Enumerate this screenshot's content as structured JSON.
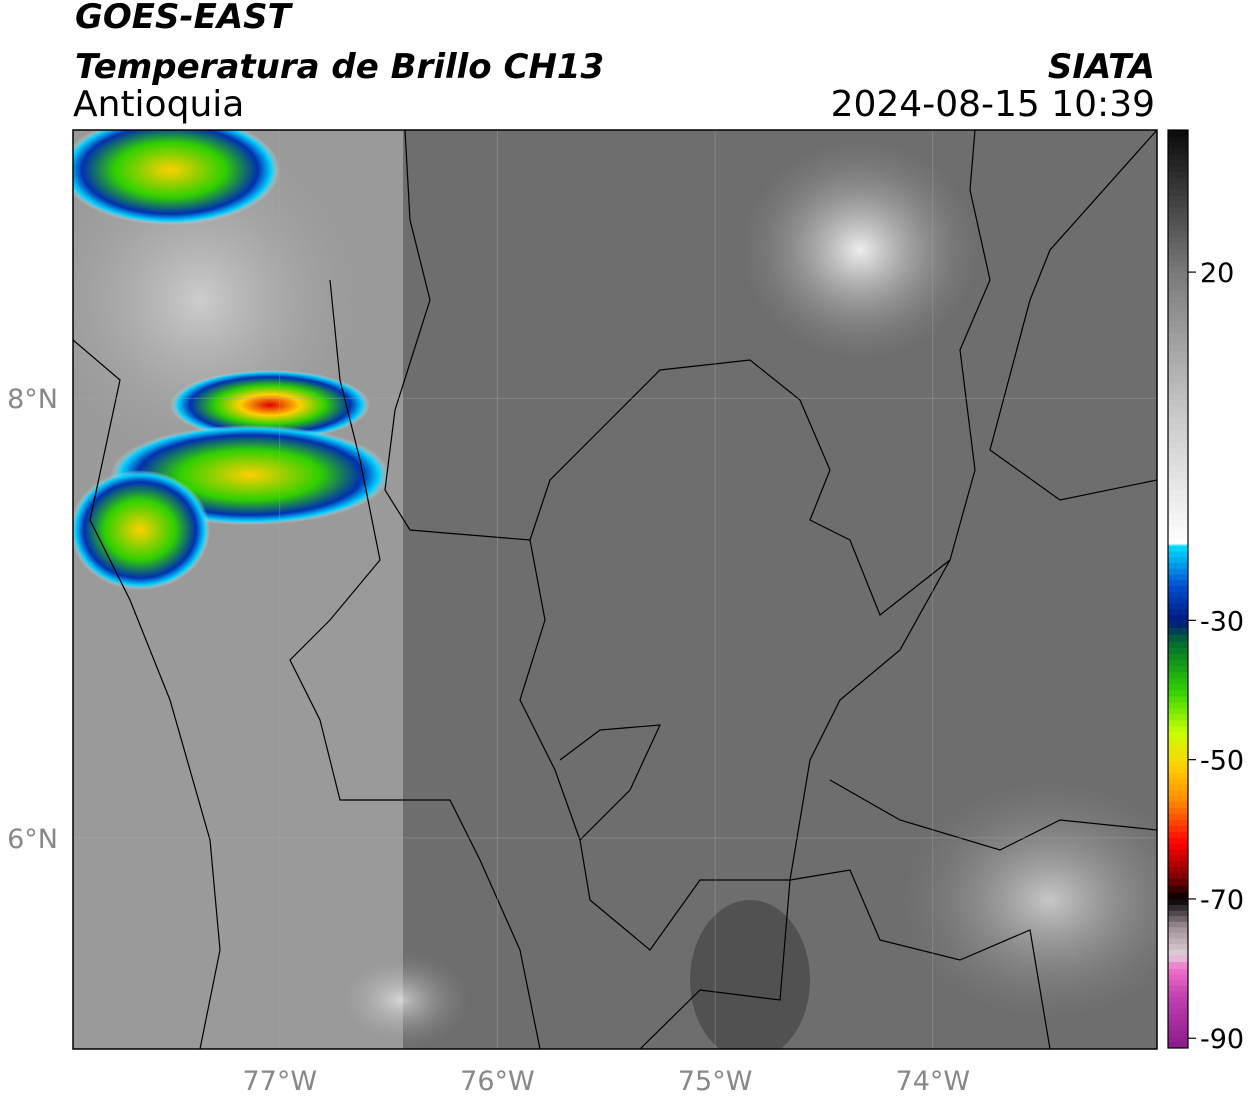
{
  "title": "GOES-EAST",
  "subtitle": "Temperatura de Brillo CH13",
  "region": "Antioquia",
  "source": "SIATA",
  "datetime": "2024-08-15 10:39",
  "map": {
    "xlim": [
      -77.95,
      -72.97
    ],
    "ylim": [
      5.04,
      9.22
    ],
    "xticks": [
      {
        "value": -77,
        "label": "77°W"
      },
      {
        "value": -76,
        "label": "76°W"
      },
      {
        "value": -75,
        "label": "75°W"
      },
      {
        "value": -74,
        "label": "74°W"
      }
    ],
    "yticks": [
      {
        "value": 8,
        "label": "8°N"
      },
      {
        "value": 6,
        "label": "6°N"
      }
    ],
    "grid": true
  },
  "colorbar": {
    "clim": [
      -91.4,
      40.4
    ],
    "ticks": [
      20,
      -30,
      -50,
      -70,
      -90
    ],
    "colormap": [
      [
        -91.4,
        "#8a1a8a"
      ],
      [
        -84,
        "#c040b0"
      ],
      [
        -80,
        "#f070c8"
      ],
      [
        -78,
        "#e0d0d8"
      ],
      [
        -74,
        "#a09098"
      ],
      [
        -70,
        "#000000"
      ],
      [
        -67,
        "#7a0000"
      ],
      [
        -62,
        "#ff0000"
      ],
      [
        -56,
        "#ff8800"
      ],
      [
        -51,
        "#ffd000"
      ],
      [
        -46,
        "#c8ff00"
      ],
      [
        -40,
        "#30d000"
      ],
      [
        -33,
        "#006a30"
      ],
      [
        -30,
        "#001880"
      ],
      [
        -25,
        "#0050d0"
      ],
      [
        -19.2,
        "#00e0ff"
      ],
      [
        -19,
        "#ffffff"
      ],
      [
        0,
        "#c8c8c8"
      ],
      [
        20,
        "#7a7a7a"
      ],
      [
        40.4,
        "#0a0a0a"
      ]
    ]
  }
}
